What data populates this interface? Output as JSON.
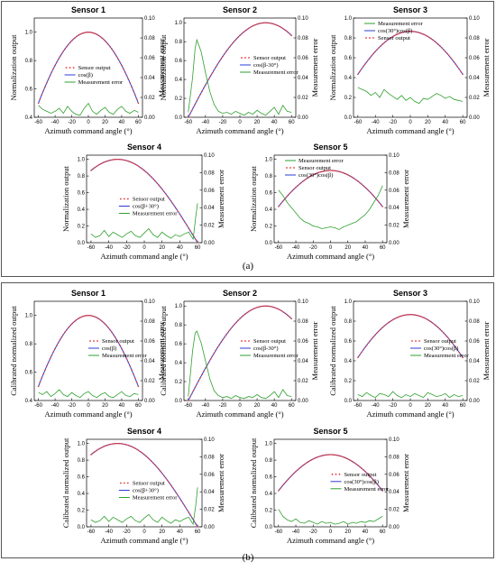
{
  "colors": {
    "sensor_output": "#e8332d",
    "model": "#2a3cd6",
    "error": "#2ea02e",
    "axis": "#000000"
  },
  "panels": [
    {
      "label": "(a)",
      "ylabel": "Normalization output"
    },
    {
      "label": "(b)",
      "ylabel": "Calibrated normalized output"
    }
  ],
  "chart_data": [
    {
      "type": "line",
      "panel": "a",
      "title": "Sensor 1",
      "xlabel": "Azimuth command angle (°)",
      "ylabel": "Normalization output",
      "y2label": "Measurement error",
      "xlim": [
        -65,
        65
      ],
      "xticks": [
        -60,
        -40,
        -20,
        0,
        20,
        40,
        60
      ],
      "ylim": [
        0.4,
        1.1
      ],
      "yticks": [
        0.4,
        0.6,
        0.8,
        1.0
      ],
      "y2lim": [
        0,
        0.1
      ],
      "y2ticks": [
        0.0,
        0.02,
        0.04,
        0.06,
        0.08,
        0.1
      ],
      "model": {
        "phase": 0,
        "scale": 1.0,
        "min_angle": -60,
        "max_angle": 60
      },
      "error_x": [
        -60,
        -55,
        -50,
        -45,
        -40,
        -35,
        -30,
        -25,
        -20,
        -15,
        -10,
        -5,
        0,
        5,
        10,
        15,
        20,
        25,
        30,
        35,
        40,
        45,
        50,
        55,
        60
      ],
      "error_y": [
        0.012,
        0.008,
        0.006,
        0.004,
        0.006,
        0.009,
        0.004,
        0.011,
        0.006,
        0.003,
        0.002,
        0.009,
        0.014,
        0.006,
        0.003,
        0.007,
        0.01,
        0.005,
        0.003,
        0.008,
        0.011,
        0.006,
        0.004,
        0.007,
        0.005
      ],
      "legend": [
        "Sensor output",
        "cos(β)",
        "Measurement error"
      ],
      "legend_pos": "center-left"
    },
    {
      "type": "line",
      "panel": "a",
      "title": "Sensor 2",
      "xlabel": "Azimuth command angle (°)",
      "ylabel": "Normalization output",
      "y2label": "Measurement error",
      "xlim": [
        -65,
        65
      ],
      "xticks": [
        -60,
        -40,
        -20,
        0,
        20,
        40,
        60
      ],
      "ylim": [
        0,
        1.05
      ],
      "yticks": [
        0.0,
        0.2,
        0.4,
        0.6,
        0.8,
        1.0
      ],
      "y2lim": [
        0,
        0.1
      ],
      "y2ticks": [
        0.0,
        0.02,
        0.04,
        0.06,
        0.08,
        0.1
      ],
      "model": {
        "phase": 30,
        "scale": 1.0,
        "min_angle": -60,
        "max_angle": 60
      },
      "error_x": [
        -60,
        -55,
        -52,
        -50,
        -45,
        -40,
        -35,
        -30,
        -25,
        -20,
        -15,
        -10,
        -5,
        0,
        5,
        10,
        15,
        20,
        25,
        30,
        35,
        40,
        45,
        50,
        55,
        60
      ],
      "error_y": [
        0.005,
        0.04,
        0.07,
        0.078,
        0.066,
        0.045,
        0.026,
        0.013,
        0.006,
        0.004,
        0.005,
        0.003,
        0.006,
        0.004,
        0.002,
        0.005,
        0.003,
        0.007,
        0.004,
        0.002,
        0.006,
        0.01,
        0.003,
        0.012,
        0.006,
        0.005
      ],
      "legend": [
        "Sensor output",
        "cos(β-30°)",
        "Measurement error"
      ],
      "legend_pos": "center-right"
    },
    {
      "type": "line",
      "panel": "a",
      "title": "Sensor 3",
      "xlabel": "Azimuth command angle (°)",
      "ylabel": "Normalization output",
      "y2label": "Measurement error",
      "xlim": [
        -65,
        65
      ],
      "xticks": [
        -60,
        -40,
        -20,
        0,
        20,
        40,
        60
      ],
      "ylim": [
        0,
        1.0
      ],
      "yticks": [
        0.0,
        0.2,
        0.4,
        0.6,
        0.8,
        1.0
      ],
      "y2lim": [
        0,
        0.1
      ],
      "y2ticks": [
        0.0,
        0.02,
        0.04,
        0.06,
        0.08,
        0.1
      ],
      "model": {
        "phase": 0,
        "scale": 0.866,
        "min_angle": -60,
        "max_angle": 60
      },
      "error_x": [
        -60,
        -55,
        -50,
        -45,
        -40,
        -35,
        -30,
        -25,
        -20,
        -15,
        -10,
        -5,
        0,
        5,
        10,
        15,
        20,
        25,
        30,
        35,
        40,
        45,
        50,
        55,
        60
      ],
      "error_y": [
        0.03,
        0.028,
        0.026,
        0.022,
        0.025,
        0.02,
        0.028,
        0.024,
        0.021,
        0.018,
        0.022,
        0.017,
        0.02,
        0.016,
        0.014,
        0.019,
        0.018,
        0.021,
        0.024,
        0.022,
        0.019,
        0.021,
        0.018,
        0.017,
        0.016
      ],
      "legend": [
        "Measurement error",
        "cos(30°)cos(β)",
        "Sensor output"
      ],
      "legend_pos": "top"
    },
    {
      "type": "line",
      "panel": "a",
      "title": "Sensor 4",
      "xlabel": "Azimuth command angle (°)",
      "ylabel": "Normalization output",
      "y2label": "Measurement error",
      "xlim": [
        -65,
        65
      ],
      "xticks": [
        -60,
        -40,
        -20,
        0,
        20,
        40,
        60
      ],
      "ylim": [
        0,
        1.05
      ],
      "yticks": [
        0.0,
        0.2,
        0.4,
        0.6,
        0.8,
        1.0
      ],
      "y2lim": [
        0,
        0.1
      ],
      "y2ticks": [
        0.0,
        0.02,
        0.04,
        0.06,
        0.08,
        0.1
      ],
      "model": {
        "phase": -30,
        "scale": 1.0,
        "min_angle": -60,
        "max_angle": 60
      },
      "error_x": [
        -60,
        -55,
        -50,
        -45,
        -40,
        -35,
        -30,
        -25,
        -20,
        -15,
        -10,
        -5,
        0,
        5,
        10,
        15,
        20,
        25,
        30,
        35,
        40,
        45,
        50,
        55,
        58,
        60
      ],
      "error_y": [
        0.01,
        0.006,
        0.008,
        0.014,
        0.007,
        0.012,
        0.009,
        0.006,
        0.01,
        0.013,
        0.008,
        0.006,
        0.011,
        0.016,
        0.009,
        0.006,
        0.012,
        0.008,
        0.005,
        0.009,
        0.007,
        0.01,
        0.012,
        0.004,
        0.03,
        0.045
      ],
      "legend": [
        "Sensor output",
        "cos(β+30°)",
        "Measurement error"
      ],
      "legend_pos": "center-left"
    },
    {
      "type": "line",
      "panel": "a",
      "title": "Sensor 5",
      "xlabel": "Azimuth command angle (°)",
      "ylabel": "Normalization output",
      "y2label": "Measurement error",
      "xlim": [
        -65,
        65
      ],
      "xticks": [
        -60,
        -40,
        -20,
        0,
        20,
        40,
        60
      ],
      "ylim": [
        0,
        1.05
      ],
      "yticks": [
        0.0,
        0.2,
        0.4,
        0.6,
        0.8,
        1.0
      ],
      "y2lim": [
        0,
        0.1
      ],
      "y2ticks": [
        0.0,
        0.02,
        0.04,
        0.06,
        0.08,
        0.1
      ],
      "model": {
        "phase": 0,
        "scale": 0.866,
        "min_angle": -60,
        "max_angle": 60
      },
      "error_x": [
        -60,
        -55,
        -50,
        -45,
        -40,
        -35,
        -30,
        -25,
        -20,
        -15,
        -10,
        -5,
        0,
        5,
        10,
        15,
        20,
        25,
        30,
        35,
        40,
        45,
        50,
        55,
        60
      ],
      "error_y": [
        0.06,
        0.054,
        0.046,
        0.04,
        0.034,
        0.028,
        0.024,
        0.022,
        0.019,
        0.018,
        0.016,
        0.017,
        0.018,
        0.017,
        0.015,
        0.018,
        0.02,
        0.022,
        0.024,
        0.028,
        0.032,
        0.038,
        0.046,
        0.054,
        0.065
      ],
      "legend": [
        "Measurement error",
        "Sensor output",
        "cos(30°)cos(β)"
      ],
      "legend_pos": "top"
    },
    {
      "type": "line",
      "panel": "b",
      "title": "Sensor 1",
      "xlabel": "Azimuth command angle (°)",
      "ylabel": "Calibrated normalized output",
      "y2label": "Measurement error",
      "xlim": [
        -65,
        65
      ],
      "xticks": [
        -60,
        -40,
        -20,
        0,
        20,
        40,
        60
      ],
      "ylim": [
        0.4,
        1.1
      ],
      "yticks": [
        0.4,
        0.6,
        0.8,
        1.0
      ],
      "y2lim": [
        0,
        0.1
      ],
      "y2ticks": [
        0.0,
        0.02,
        0.04,
        0.06,
        0.08,
        0.1
      ],
      "model": {
        "phase": 0,
        "scale": 1.0,
        "min_angle": -60,
        "max_angle": 60
      },
      "error_x": [
        -60,
        -55,
        -50,
        -45,
        -40,
        -35,
        -30,
        -25,
        -20,
        -15,
        -10,
        -5,
        0,
        5,
        10,
        15,
        20,
        25,
        30,
        35,
        40,
        45,
        50,
        55,
        60
      ],
      "error_y": [
        0.008,
        0.006,
        0.009,
        0.004,
        0.007,
        0.011,
        0.006,
        0.004,
        0.008,
        0.005,
        0.003,
        0.007,
        0.009,
        0.005,
        0.003,
        0.006,
        0.008,
        0.004,
        0.003,
        0.006,
        0.009,
        0.005,
        0.004,
        0.007,
        0.006
      ],
      "legend": [
        "Sensor output",
        "cos(β)",
        "Measurement error"
      ],
      "legend_pos": "center-right"
    },
    {
      "type": "line",
      "panel": "b",
      "title": "Sensor 2",
      "xlabel": "Azimuth command angle (°)",
      "ylabel": "Calibrated normalized output",
      "y2label": "Measurement error",
      "xlim": [
        -65,
        65
      ],
      "xticks": [
        -60,
        -40,
        -20,
        0,
        20,
        40,
        60
      ],
      "ylim": [
        0,
        1.05
      ],
      "yticks": [
        0.0,
        0.2,
        0.4,
        0.6,
        0.8,
        1.0
      ],
      "y2lim": [
        0,
        0.1
      ],
      "y2ticks": [
        0.0,
        0.02,
        0.04,
        0.06,
        0.08,
        0.1
      ],
      "model": {
        "phase": 30,
        "scale": 1.0,
        "min_angle": -60,
        "max_angle": 60
      },
      "error_x": [
        -60,
        -55,
        -52,
        -50,
        -45,
        -40,
        -35,
        -30,
        -25,
        -20,
        -15,
        -10,
        -5,
        0,
        5,
        10,
        15,
        20,
        25,
        30,
        35,
        40,
        45,
        50,
        55,
        60
      ],
      "error_y": [
        0.004,
        0.05,
        0.068,
        0.07,
        0.058,
        0.04,
        0.022,
        0.01,
        0.005,
        0.003,
        0.004,
        0.002,
        0.005,
        0.003,
        0.002,
        0.004,
        0.003,
        0.006,
        0.003,
        0.002,
        0.005,
        0.009,
        0.003,
        0.011,
        0.005,
        0.004
      ],
      "legend": [
        "Sensor output",
        "cos(β-30°)",
        "Measurement error"
      ],
      "legend_pos": "center-right"
    },
    {
      "type": "line",
      "panel": "b",
      "title": "Sensor 3",
      "xlabel": "Azimuth command angle (°)",
      "ylabel": "Calibrated normalized output",
      "y2label": "Measurement error",
      "xlim": [
        -65,
        65
      ],
      "xticks": [
        -60,
        -40,
        -20,
        0,
        20,
        40,
        60
      ],
      "ylim": [
        0,
        1.0
      ],
      "yticks": [
        0.0,
        0.2,
        0.4,
        0.6,
        0.8,
        1.0
      ],
      "y2lim": [
        0,
        0.1
      ],
      "y2ticks": [
        0.0,
        0.02,
        0.04,
        0.06,
        0.08,
        0.1
      ],
      "model": {
        "phase": 0,
        "scale": 0.866,
        "min_angle": -60,
        "max_angle": 60
      },
      "error_x": [
        -60,
        -55,
        -50,
        -45,
        -40,
        -35,
        -30,
        -25,
        -20,
        -15,
        -10,
        -5,
        0,
        5,
        10,
        15,
        20,
        25,
        30,
        35,
        40,
        45,
        50,
        55,
        60
      ],
      "error_y": [
        0.006,
        0.004,
        0.008,
        0.005,
        0.003,
        0.007,
        0.006,
        0.004,
        0.009,
        0.005,
        0.003,
        0.006,
        0.004,
        0.007,
        0.005,
        0.003,
        0.008,
        0.006,
        0.004,
        0.005,
        0.007,
        0.003,
        0.006,
        0.004,
        0.005
      ],
      "legend": [
        "Sensor output",
        "cos(30°)cos(β)",
        "Measurement error"
      ],
      "legend_pos": "center-right"
    },
    {
      "type": "line",
      "panel": "b",
      "title": "Sensor 4",
      "xlabel": "Azimuth command angle (°)",
      "ylabel": "Calibrated normalized output",
      "y2label": "Measurement error",
      "xlim": [
        -65,
        65
      ],
      "xticks": [
        -60,
        -40,
        -20,
        0,
        20,
        40,
        60
      ],
      "ylim": [
        0,
        1.05
      ],
      "yticks": [
        0.0,
        0.2,
        0.4,
        0.6,
        0.8,
        1.0
      ],
      "y2lim": [
        0,
        0.1
      ],
      "y2ticks": [
        0.0,
        0.02,
        0.04,
        0.06,
        0.08,
        0.1
      ],
      "model": {
        "phase": -30,
        "scale": 1.0,
        "min_angle": -60,
        "max_angle": 60
      },
      "error_x": [
        -60,
        -55,
        -50,
        -45,
        -40,
        -35,
        -30,
        -25,
        -20,
        -15,
        -10,
        -5,
        0,
        5,
        10,
        15,
        20,
        25,
        30,
        35,
        40,
        45,
        50,
        55,
        58,
        60
      ],
      "error_y": [
        0.008,
        0.005,
        0.007,
        0.012,
        0.006,
        0.011,
        0.008,
        0.005,
        0.009,
        0.012,
        0.007,
        0.005,
        0.01,
        0.014,
        0.008,
        0.005,
        0.011,
        0.007,
        0.004,
        0.008,
        0.006,
        0.009,
        0.011,
        0.003,
        0.025,
        0.045
      ],
      "legend": [
        "Sensor output",
        "cos(β+30°)",
        "Measurement error"
      ],
      "legend_pos": "center-left"
    },
    {
      "type": "line",
      "panel": "b",
      "title": "Sensor 5",
      "xlabel": "Azimuth command angle (°)",
      "ylabel": "Calibrated normalized output",
      "y2label": "Measurement error",
      "xlim": [
        -65,
        65
      ],
      "xticks": [
        -60,
        -40,
        -20,
        0,
        20,
        40,
        60
      ],
      "ylim": [
        0,
        1.05
      ],
      "yticks": [
        0.0,
        0.2,
        0.4,
        0.6,
        0.8,
        1.0
      ],
      "y2lim": [
        0,
        0.1
      ],
      "y2ticks": [
        0.0,
        0.02,
        0.04,
        0.06,
        0.08,
        0.1
      ],
      "model": {
        "phase": 0,
        "scale": 0.866,
        "min_angle": -60,
        "max_angle": 60
      },
      "error_x": [
        -60,
        -55,
        -50,
        -45,
        -40,
        -35,
        -30,
        -25,
        -20,
        -15,
        -10,
        -5,
        0,
        5,
        10,
        15,
        20,
        25,
        30,
        35,
        40,
        45,
        50,
        55,
        60
      ],
      "error_y": [
        0.02,
        0.012,
        0.008,
        0.006,
        0.009,
        0.005,
        0.004,
        0.007,
        0.005,
        0.003,
        0.006,
        0.004,
        0.005,
        0.003,
        0.004,
        0.006,
        0.003,
        0.005,
        0.004,
        0.006,
        0.005,
        0.007,
        0.006,
        0.009,
        0.012
      ],
      "legend": [
        "Sensor output",
        "cos(30°)cos(β)",
        "Measurement error"
      ],
      "legend_pos": "center-right"
    }
  ]
}
